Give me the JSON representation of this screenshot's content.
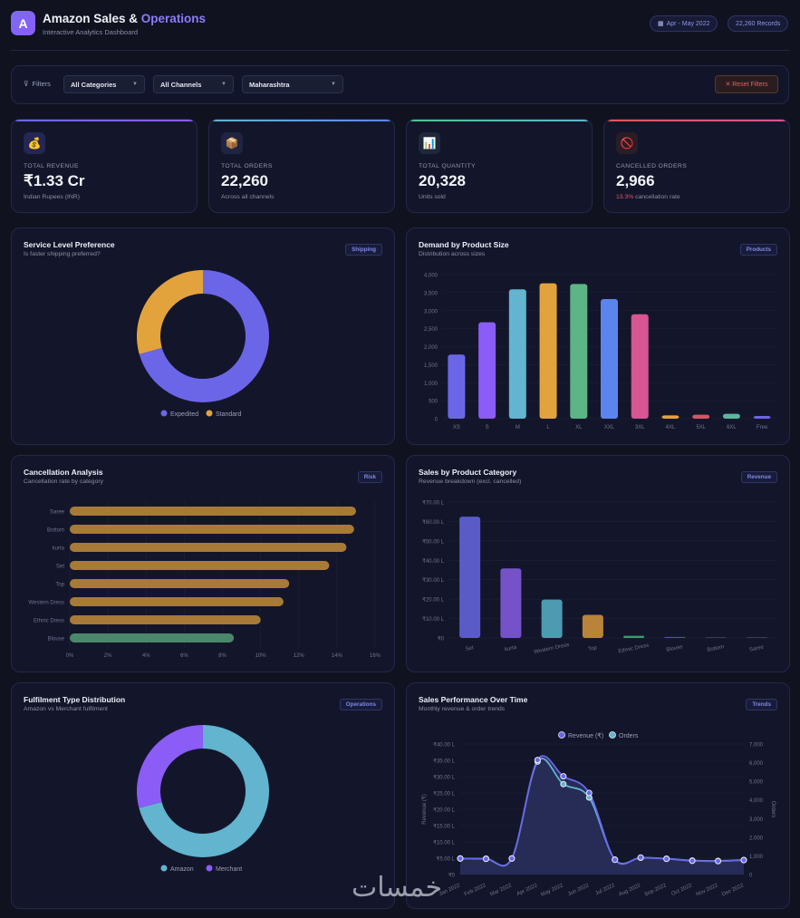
{
  "header": {
    "logo_letter": "A",
    "title_main": "Amazon Sales & ",
    "title_accent": "Operations",
    "subtitle": "Interactive Analytics Dashboard",
    "date_range": "Apr - May 2022",
    "records": "22,260 Records"
  },
  "filters": {
    "label": "Filters",
    "category": "All Categories",
    "channel": "All Channels",
    "state": "Maharashtra",
    "reset": "✕ Reset Filters"
  },
  "kpis": [
    {
      "label": "TOTAL REVENUE",
      "value": "₹1.33 Cr",
      "sub": "Indian Rupees (INR)",
      "icon": "money-bag-icon",
      "color": "#8b5cf6"
    },
    {
      "label": "TOTAL ORDERS",
      "value": "22,260",
      "sub": "Across all channels",
      "icon": "package-icon",
      "color": "#5b8def"
    },
    {
      "label": "TOTAL QUANTITY",
      "value": "20,328",
      "sub": "Units sold",
      "icon": "bar-chart-icon",
      "color": "#4cc38a"
    },
    {
      "label": "CANCELLED ORDERS",
      "value": "2,966",
      "sub_highlight": "13.3%",
      "sub": " cancellation rate",
      "icon": "prohibited-icon",
      "color": "#e0566a"
    }
  ],
  "cards": {
    "service": {
      "title": "Service Level Preference",
      "subtitle": "Is faster shipping preferred?",
      "tag": "Shipping"
    },
    "size": {
      "title": "Demand by Product Size",
      "subtitle": "Distribution across sizes",
      "tag": "Products"
    },
    "cancel": {
      "title": "Cancellation Analysis",
      "subtitle": "Cancellation rate by category",
      "tag": "Risk"
    },
    "category": {
      "title": "Sales by Product Category",
      "subtitle": "Revenue breakdown (excl. cancelled)",
      "tag": "Revenue"
    },
    "fulfilment": {
      "title": "Fulfilment Type Distribution",
      "subtitle": "Amazon vs Merchant fulfilment",
      "tag": "Operations"
    },
    "trend": {
      "title": "Sales Performance Over Time",
      "subtitle": "Monthly revenue & order trends",
      "tag": "Trends"
    }
  },
  "chart_data": [
    {
      "id": "service",
      "type": "pie",
      "donut": true,
      "labels": [
        "Expedited",
        "Standard"
      ],
      "values": [
        70.6,
        29.4
      ],
      "colors": [
        "#6b66e8",
        "#e3a33c"
      ],
      "legend": "bottom"
    },
    {
      "id": "size",
      "type": "bar",
      "categories": [
        "XS",
        "S",
        "M",
        "L",
        "XL",
        "XXL",
        "3XL",
        "4XL",
        "5XL",
        "6XL",
        "Free"
      ],
      "values": [
        1780,
        2675,
        3590,
        3757,
        3740,
        3320,
        2900,
        90,
        110,
        135,
        40
      ],
      "colors": [
        "#6b66e8",
        "#8b5cf6",
        "#62b4cf",
        "#e3a33c",
        "#5db485",
        "#5b84ec",
        "#d65592",
        "#e3a33c",
        "#d65566",
        "#5db4a0",
        "#6b66e8"
      ],
      "ylim": [
        0,
        4000
      ],
      "yticks": [
        "0",
        "500",
        "1,000",
        "1,500",
        "2,000",
        "2,500",
        "3,000",
        "3,500",
        "4,000"
      ]
    },
    {
      "id": "cancel",
      "type": "bar",
      "orientation": "horizontal",
      "categories": [
        "Saree",
        "Bottom",
        "kurta",
        "Set",
        "Top",
        "Western Dress",
        "Ethnic Dress",
        "Blouse"
      ],
      "values": [
        15.0,
        14.9,
        14.5,
        13.6,
        11.5,
        11.2,
        10.0,
        8.6
      ],
      "colors": [
        "#a87a38",
        "#a87a38",
        "#a87a38",
        "#a87a38",
        "#a87a38",
        "#a87a38",
        "#a87a38",
        "#4b876b"
      ],
      "xlim": [
        0,
        16
      ],
      "xticks": [
        "0%",
        "2%",
        "4%",
        "6%",
        "8%",
        "10%",
        "12%",
        "14%",
        "16%"
      ]
    },
    {
      "id": "category",
      "type": "bar",
      "categories": [
        "Set",
        "kurta",
        "Western Dress",
        "Top",
        "Ethnic Dress",
        "Blouse",
        "Bottom",
        "Saree"
      ],
      "values": [
        62.5,
        35.8,
        19.8,
        11.9,
        1.1,
        0.5,
        0.15,
        0.03
      ],
      "colors": [
        "#5a5bc6",
        "#7652c9",
        "#4e9ab0",
        "#b8843a",
        "#3e9a6a",
        "#4e4fb8",
        "#3a3d55",
        "#3a3d55"
      ],
      "ylabel": "Revenue (₹ Lakh)",
      "ylim": [
        0,
        70
      ],
      "yticks": [
        "₹0",
        "₹10.00 L",
        "₹20.00 L",
        "₹30.00 L",
        "₹40.00 L",
        "₹50.00 L",
        "₹60.00 L",
        "₹70.00 L"
      ]
    },
    {
      "id": "fulfilment",
      "type": "pie",
      "donut": true,
      "labels": [
        "Amazon",
        "Merchant"
      ],
      "values": [
        70.9,
        29.1
      ],
      "colors": [
        "#62b4cf",
        "#8b5cf6"
      ],
      "legend": "bottom"
    },
    {
      "id": "trend",
      "type": "line",
      "x": [
        "Jan 2022",
        "Feb 2022",
        "Mar 2022",
        "Apr 2022",
        "May 2022",
        "Jun 2022",
        "Jul 2022",
        "Aug 2022",
        "Sep 2022",
        "Oct 2022",
        "Nov 2022",
        "Dec 2022"
      ],
      "series": [
        {
          "name": "Revenue (₹)",
          "axis": "left",
          "color": "#6b66e8",
          "values": [
            4.9,
            4.8,
            4.9,
            35.1,
            30.1,
            25.0,
            4.5,
            5.2,
            4.8,
            4.2,
            4.1,
            4.4
          ]
        },
        {
          "name": "Orders",
          "axis": "right",
          "color": "#62b4cf",
          "values": [
            860,
            850,
            860,
            6060,
            4850,
            4130,
            800,
            900,
            850,
            750,
            730,
            780
          ]
        }
      ],
      "ylabel": "Revenue (₹)",
      "y2label": "Orders",
      "ylim": [
        0,
        40
      ],
      "y2lim": [
        0,
        7000
      ],
      "yticks": [
        "₹0",
        "₹5.00 L",
        "₹10.00 L",
        "₹15.00 L",
        "₹20.00 L",
        "₹25.00 L",
        "₹30.00 L",
        "₹35.00 L",
        "₹40.00 L"
      ],
      "y2ticks": [
        "0",
        "1,000",
        "2,000",
        "3,000",
        "4,000",
        "5,000",
        "6,000",
        "7,000"
      ],
      "legend": "top"
    }
  ]
}
